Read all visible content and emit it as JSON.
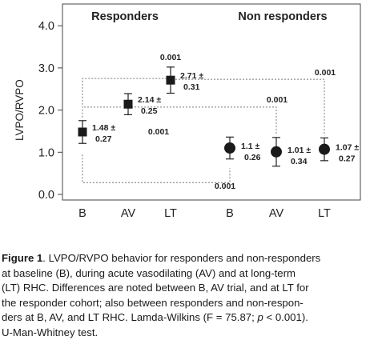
{
  "chart_data": {
    "type": "scatter",
    "categories": [
      "B",
      "AV",
      "LT",
      "B",
      "AV",
      "LT"
    ],
    "ylabel": "LVPO/RVPO",
    "ylim": [
      0.0,
      4.0
    ],
    "yticks": [
      "0.0",
      "1.0",
      "2.0",
      "3.0",
      "4.0"
    ],
    "grid": false,
    "groups": [
      {
        "name": "Responders",
        "marker": "square",
        "points": [
          {
            "x": "B",
            "mean": 1.48,
            "err": 0.27,
            "label_value": "1.48 ±",
            "label_err": "0.27"
          },
          {
            "x": "AV",
            "mean": 2.14,
            "err": 0.25,
            "label_value": "2.14 ±",
            "label_err": "0.25"
          },
          {
            "x": "LT",
            "mean": 2.71,
            "err": 0.31,
            "label_value": "2.71 ±",
            "label_err": "0.31"
          }
        ]
      },
      {
        "name": "Non responders",
        "marker": "circle",
        "points": [
          {
            "x": "B",
            "mean": 1.1,
            "err": 0.26,
            "label_value": "1.1 ±",
            "label_err": "0.26"
          },
          {
            "x": "AV",
            "mean": 1.01,
            "err": 0.34,
            "label_value": "1.01 ±",
            "label_err": "0.34"
          },
          {
            "x": "LT",
            "mean": 1.07,
            "err": 0.27,
            "label_value": "1.07 ±",
            "label_err": "0.27"
          }
        ]
      }
    ],
    "annotations": [
      {
        "text": "0.001",
        "between": [
          "Responders B",
          "Responders LT"
        ]
      },
      {
        "text": "0.001",
        "between": [
          "Responders LT",
          "Non responders LT"
        ]
      },
      {
        "text": "0.001",
        "between": [
          "Responders AV",
          "Non responders AV"
        ]
      },
      {
        "text": "0.001",
        "between": [
          "Responders B",
          "Responders AV"
        ]
      },
      {
        "text": "0.001",
        "between": [
          "Responders B",
          "Non responders B"
        ]
      }
    ]
  },
  "caption": {
    "figure_label": "Figure 1",
    "lines": [
      "LVPO/RVPO behavior for responders and non-responders",
      "at baseline (B), during acute vasodilating (AV) and at long-term",
      "(LT) RHC. Differences are noted between B, AV trial, and at LT for",
      "the responder cohort; also between responders and non-respon-",
      "ders at B, AV, and LT RHC. Lamda-Wilkins (F = 75.87; ",
      "p",
      " < 0.001).",
      "U-Man-Whitney test."
    ]
  }
}
